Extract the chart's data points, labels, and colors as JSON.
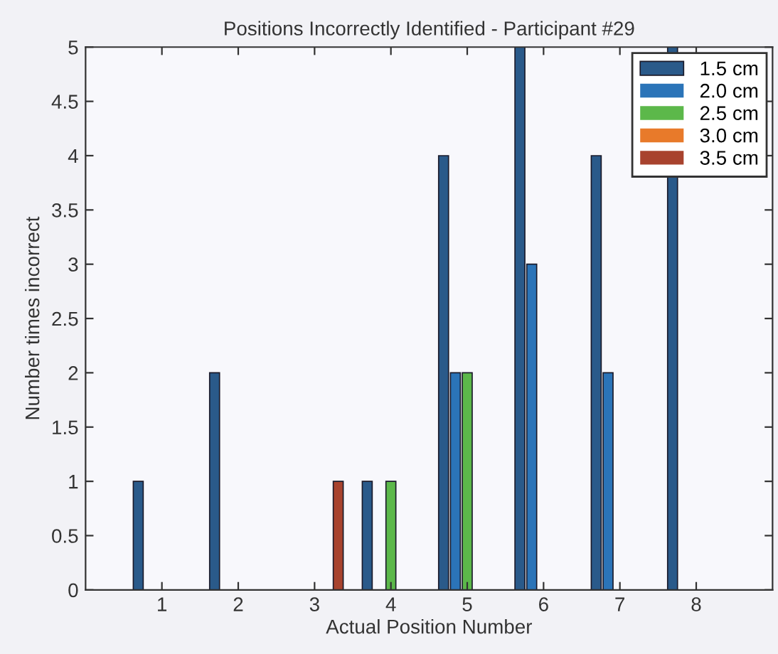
{
  "chart_data": {
    "type": "bar",
    "title": "Positions Incorrectly Identified - Participant #29",
    "xlabel": "Actual Position Number",
    "ylabel": "Number times incorrect",
    "x": [
      1,
      2,
      3,
      4,
      5,
      6,
      7,
      8
    ],
    "series": [
      {
        "name": "1.5 cm",
        "color": "#2a5a8a",
        "values": [
          1,
          2,
          0,
          1,
          4,
          5,
          4,
          5
        ]
      },
      {
        "name": "2.0 cm",
        "color": "#2b74b8",
        "values": [
          0,
          0,
          0,
          0,
          2,
          3,
          2,
          0
        ]
      },
      {
        "name": "2.5 cm",
        "color": "#5cb84a",
        "values": [
          0,
          0,
          0,
          1,
          2,
          0,
          0,
          0
        ]
      },
      {
        "name": "3.0 cm",
        "color": "#e87a2a",
        "values": [
          0,
          0,
          0,
          0,
          0,
          0,
          0,
          0
        ]
      },
      {
        "name": "3.5 cm",
        "color": "#a8432e",
        "values": [
          0,
          0,
          1,
          0,
          0,
          0,
          0,
          0
        ]
      }
    ],
    "xlim": [
      0,
      9
    ],
    "xticks": [
      1,
      2,
      3,
      4,
      5,
      6,
      7,
      8
    ],
    "ylim": [
      0,
      5
    ],
    "yticks": [
      0,
      0.5,
      1,
      1.5,
      2,
      2.5,
      3,
      3.5,
      4,
      4.5,
      5
    ],
    "grid": false,
    "legend": "top right"
  }
}
